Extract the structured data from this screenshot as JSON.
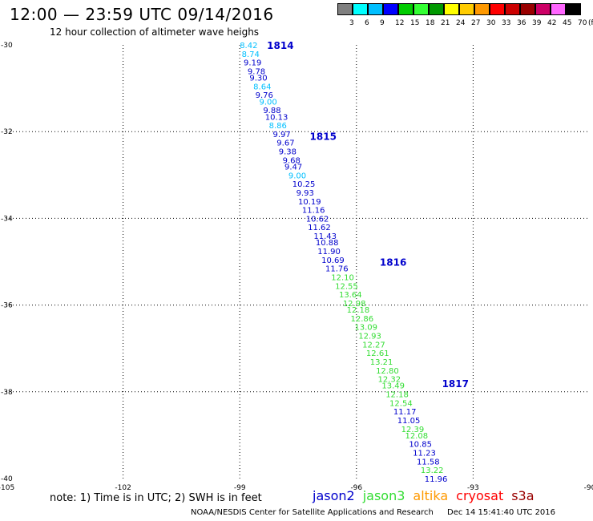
{
  "header": {
    "title": "12:00 — 23:59 UTC 09/14/2016",
    "subtitle": "12 hour collection of altimeter wave heighs"
  },
  "legend": {
    "colors": [
      "#7f7f7f",
      "#00ffff",
      "#00bfff",
      "#0000ff",
      "#00cc00",
      "#33ff33",
      "#009900",
      "#ffff00",
      "#ffcc00",
      "#ff9900",
      "#ff0000",
      "#cc0000",
      "#990000",
      "#cc0066",
      "#ff66ff",
      "#000000"
    ],
    "labels": [
      "3",
      "6",
      "9",
      "12",
      "15",
      "18",
      "21",
      "24",
      "27",
      "30",
      "33",
      "36",
      "39",
      "42",
      "45",
      "70",
      "(ft)"
    ]
  },
  "axes": {
    "lon_ticks": [
      "-105",
      "-102",
      "-99",
      "-96",
      "-93",
      "-90"
    ],
    "lat_ticks": [
      "-30",
      "-32",
      "-34",
      "-36",
      "-38",
      "-40"
    ]
  },
  "passes": [
    {
      "label": "1814",
      "lat": -30.0,
      "lon": -98.3
    },
    {
      "label": "1815",
      "lat": -32.1,
      "lon": -97.2
    },
    {
      "label": "1816",
      "lat": -35.0,
      "lon": -95.4
    },
    {
      "label": "1817",
      "lat": -37.8,
      "lon": -93.8
    }
  ],
  "observations": [
    {
      "lat": -30.0,
      "lon": -99.0,
      "swh": "8.42",
      "sat": "jason2"
    },
    {
      "lat": -30.2,
      "lon": -98.95,
      "swh": "8.74",
      "sat": "jason2"
    },
    {
      "lat": -30.4,
      "lon": -98.9,
      "swh": "9.19",
      "sat": "jason2"
    },
    {
      "lat": -30.6,
      "lon": -98.8,
      "swh": "9.78",
      "sat": "jason2"
    },
    {
      "lat": -30.75,
      "lon": -98.75,
      "swh": "9.30",
      "sat": "jason2"
    },
    {
      "lat": -30.95,
      "lon": -98.65,
      "swh": "8.64",
      "sat": "jason2"
    },
    {
      "lat": -31.15,
      "lon": -98.6,
      "swh": "9.76",
      "sat": "jason2"
    },
    {
      "lat": -31.3,
      "lon": -98.5,
      "swh": "9.00",
      "sat": "jason2"
    },
    {
      "lat": -31.5,
      "lon": -98.4,
      "swh": "9.88",
      "sat": "jason2"
    },
    {
      "lat": -31.65,
      "lon": -98.35,
      "swh": "10.13",
      "sat": "jason2"
    },
    {
      "lat": -31.85,
      "lon": -98.25,
      "swh": "8.86",
      "sat": "jason2"
    },
    {
      "lat": -32.05,
      "lon": -98.15,
      "swh": "9.97",
      "sat": "jason2"
    },
    {
      "lat": -32.25,
      "lon": -98.05,
      "swh": "9.67",
      "sat": "jason2"
    },
    {
      "lat": -32.45,
      "lon": -98.0,
      "swh": "9.38",
      "sat": "jason2"
    },
    {
      "lat": -32.65,
      "lon": -97.9,
      "swh": "9.68",
      "sat": "jason2"
    },
    {
      "lat": -32.8,
      "lon": -97.85,
      "swh": "9.47",
      "sat": "jason2"
    },
    {
      "lat": -33.0,
      "lon": -97.75,
      "swh": "9.00",
      "sat": "jason2"
    },
    {
      "lat": -33.2,
      "lon": -97.65,
      "swh": "10.25",
      "sat": "jason2"
    },
    {
      "lat": -33.4,
      "lon": -97.55,
      "swh": "9.93",
      "sat": "jason2"
    },
    {
      "lat": -33.6,
      "lon": -97.5,
      "swh": "10.19",
      "sat": "jason2"
    },
    {
      "lat": -33.8,
      "lon": -97.4,
      "swh": "11.16",
      "sat": "jason2"
    },
    {
      "lat": -34.0,
      "lon": -97.3,
      "swh": "10.62",
      "sat": "jason2"
    },
    {
      "lat": -34.2,
      "lon": -97.25,
      "swh": "11.62",
      "sat": "jason2"
    },
    {
      "lat": -34.4,
      "lon": -97.1,
      "swh": "11.43",
      "sat": "jason2"
    },
    {
      "lat": -34.55,
      "lon": -97.05,
      "swh": "10.88",
      "sat": "jason2"
    },
    {
      "lat": -34.75,
      "lon": -97.0,
      "swh": "11.90",
      "sat": "jason2"
    },
    {
      "lat": -34.95,
      "lon": -96.9,
      "swh": "10.69",
      "sat": "jason2"
    },
    {
      "lat": -35.15,
      "lon": -96.8,
      "swh": "11.76",
      "sat": "jason2"
    },
    {
      "lat": -35.35,
      "lon": -96.65,
      "swh": "12.10",
      "sat": "jason3"
    },
    {
      "lat": -35.55,
      "lon": -96.55,
      "swh": "12.55",
      "sat": "jason3"
    },
    {
      "lat": -35.75,
      "lon": -96.45,
      "swh": "13.64",
      "sat": "jason3"
    },
    {
      "lat": -35.95,
      "lon": -96.35,
      "swh": "12.98",
      "sat": "jason3"
    },
    {
      "lat": -36.1,
      "lon": -96.25,
      "swh": "12.18",
      "sat": "jason3"
    },
    {
      "lat": -36.3,
      "lon": -96.15,
      "swh": "12.86",
      "sat": "jason3"
    },
    {
      "lat": -36.5,
      "lon": -96.05,
      "swh": "13.09",
      "sat": "jason3"
    },
    {
      "lat": -36.7,
      "lon": -95.95,
      "swh": "12.93",
      "sat": "jason3"
    },
    {
      "lat": -36.9,
      "lon": -95.85,
      "swh": "12.27",
      "sat": "jason3"
    },
    {
      "lat": -37.1,
      "lon": -95.75,
      "swh": "12.61",
      "sat": "jason3"
    },
    {
      "lat": -37.3,
      "lon": -95.65,
      "swh": "13.21",
      "sat": "jason3"
    },
    {
      "lat": -37.5,
      "lon": -95.5,
      "swh": "12.80",
      "sat": "jason3"
    },
    {
      "lat": -37.7,
      "lon": -95.45,
      "swh": "12.32",
      "sat": "jason3"
    },
    {
      "lat": -37.85,
      "lon": -95.35,
      "swh": "13.49",
      "sat": "jason3"
    },
    {
      "lat": -38.05,
      "lon": -95.25,
      "swh": "12.18",
      "sat": "jason3"
    },
    {
      "lat": -38.25,
      "lon": -95.15,
      "swh": "12.54",
      "sat": "jason3"
    },
    {
      "lat": -38.45,
      "lon": -95.05,
      "swh": "11.17",
      "sat": "jason2"
    },
    {
      "lat": -38.65,
      "lon": -94.95,
      "swh": "11.05",
      "sat": "jason2"
    },
    {
      "lat": -38.85,
      "lon": -94.85,
      "swh": "12.39",
      "sat": "jason3"
    },
    {
      "lat": -39.0,
      "lon": -94.75,
      "swh": "12.08",
      "sat": "jason3"
    },
    {
      "lat": -39.2,
      "lon": -94.65,
      "swh": "10.85",
      "sat": "jason2"
    },
    {
      "lat": -39.4,
      "lon": -94.55,
      "swh": "11.23",
      "sat": "jason2"
    },
    {
      "lat": -39.6,
      "lon": -94.45,
      "swh": "11.58",
      "sat": "jason2"
    },
    {
      "lat": -39.8,
      "lon": -94.35,
      "swh": "13.22",
      "sat": "jason3"
    },
    {
      "lat": -40.0,
      "lon": -94.25,
      "swh": "11.96",
      "sat": "jason2"
    }
  ],
  "sat_colors": {
    "jason2": "#0000cc",
    "jason3": "#33dd33",
    "altika": "#ff9900",
    "cryosat": "#ff0000",
    "s3a": "#990000",
    "swh_cyan": "#00bfff"
  },
  "note": "note:  1) Time is in UTC;  2) SWH is in feet",
  "satellites": [
    {
      "key": "jason2",
      "label": "jason2"
    },
    {
      "key": "jason3",
      "label": "jason3"
    },
    {
      "key": "altika",
      "label": "altika"
    },
    {
      "key": "cryosat",
      "label": "cryosat"
    },
    {
      "key": "s3a",
      "label": "s3a"
    }
  ],
  "footer": {
    "agency": "NOAA/NESDIS Center for Satellite Applications and Research",
    "timestamp": "Dec 14 15:41:40 UTC 2016"
  }
}
